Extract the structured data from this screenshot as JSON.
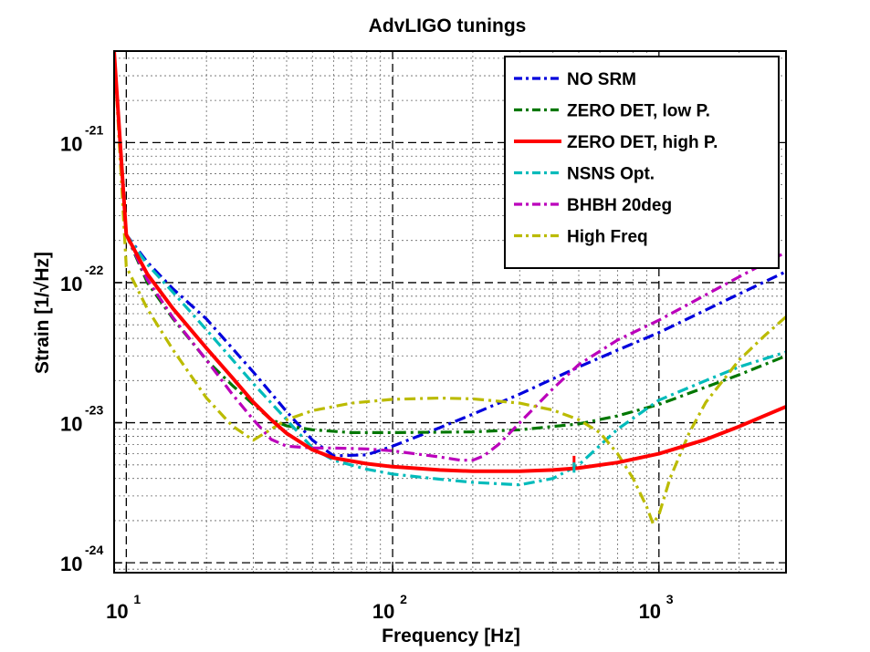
{
  "chart_data": {
    "type": "line",
    "title": "AdvLIGO tunings",
    "xlabel": "Frequency [Hz]",
    "ylabel": "Strain [1/√Hz]",
    "xscale": "log",
    "yscale": "log",
    "xlim": [
      9,
      3000
    ],
    "ylim": [
      8.5e-25,
      4.5e-21
    ],
    "grid": true,
    "legend_position": "top-right",
    "x_ticks": [
      {
        "base": "10",
        "exp": "1"
      },
      {
        "base": "10",
        "exp": "2"
      },
      {
        "base": "10",
        "exp": "3"
      }
    ],
    "y_ticks": [
      {
        "base": "10",
        "exp": "-21"
      },
      {
        "base": "10",
        "exp": "-22"
      },
      {
        "base": "10",
        "exp": "-23"
      },
      {
        "base": "10",
        "exp": "-24"
      }
    ],
    "series": [
      {
        "name": "NO SRM",
        "color": "#0000dd",
        "style": "dashdot",
        "x": [
          9,
          10,
          12,
          15,
          20,
          30,
          40,
          50,
          60,
          80,
          100,
          150,
          200,
          300,
          500,
          700,
          1000,
          2000,
          3000
        ],
        "y": [
          4.5e-21,
          2.2e-22,
          1.4e-22,
          9e-23,
          5.5e-23,
          2.3e-23,
          1.2e-23,
          7.5e-24,
          5.8e-24,
          5.9e-24,
          6.8e-24,
          9.2e-24,
          1.15e-23,
          1.6e-23,
          2.5e-23,
          3.3e-23,
          4.4e-23,
          8.3e-23,
          1.2e-22
        ]
      },
      {
        "name": "ZERO DET, low P.",
        "color": "#007700",
        "style": "dashdot",
        "x": [
          9,
          10,
          12,
          15,
          20,
          25,
          30,
          35,
          40,
          50,
          70,
          100,
          200,
          300,
          500,
          700,
          1000,
          2000,
          3000
        ],
        "y": [
          4.5e-21,
          2.2e-22,
          1e-22,
          5.5e-23,
          2.8e-23,
          1.85e-23,
          1.35e-23,
          1.05e-23,
          9.5e-24,
          8.9e-24,
          8.5e-24,
          8.5e-24,
          8.6e-24,
          8.9e-24,
          9.8e-24,
          1.12e-23,
          1.35e-23,
          2.2e-23,
          3e-23
        ]
      },
      {
        "name": "ZERO DET, high P.",
        "color": "#ff0000",
        "style": "solid",
        "x": [
          9,
          10,
          12,
          15,
          20,
          25,
          30,
          35,
          40,
          50,
          60,
          80,
          100,
          150,
          200,
          300,
          400,
          500,
          700,
          1000,
          1500,
          2000,
          3000
        ],
        "y": [
          4.5e-21,
          2.2e-22,
          1.15e-22,
          6.5e-23,
          3.4e-23,
          2.1e-23,
          1.4e-23,
          1.05e-23,
          8.4e-24,
          6.4e-24,
          5.6e-24,
          5.1e-24,
          4.85e-24,
          4.6e-24,
          4.5e-24,
          4.5e-24,
          4.6e-24,
          4.75e-24,
          5.2e-24,
          6e-24,
          7.6e-24,
          9.4e-24,
          1.3e-23
        ]
      },
      {
        "name": "NSNS Opt.",
        "color": "#00bbbb",
        "style": "dashdot",
        "x": [
          9,
          10,
          12,
          15,
          20,
          30,
          40,
          50,
          60,
          80,
          100,
          150,
          200,
          300,
          400,
          500,
          700,
          1000,
          1500,
          2000,
          3000
        ],
        "y": [
          4.5e-21,
          2.2e-22,
          1.35e-22,
          8.5e-23,
          4.6e-23,
          1.9e-23,
          1.05e-23,
          6.6e-24,
          5.4e-24,
          4.65e-24,
          4.3e-24,
          3.95e-24,
          3.75e-24,
          3.6e-24,
          4e-24,
          5e-24,
          9e-24,
          1.45e-23,
          2e-23,
          2.5e-23,
          3.2e-23
        ]
      },
      {
        "name": "BHBH 20deg",
        "color": "#bb00bb",
        "style": "dashdot",
        "x": [
          9,
          10,
          12,
          15,
          20,
          25,
          30,
          35,
          40,
          50,
          60,
          80,
          100,
          150,
          180,
          200,
          220,
          250,
          300,
          400,
          500,
          700,
          1000,
          2000,
          3000
        ],
        "y": [
          4.5e-21,
          2.2e-22,
          1.05e-22,
          5.6e-23,
          2.8e-23,
          1.6e-23,
          1.05e-23,
          7.6e-24,
          6.8e-24,
          6.6e-24,
          6.6e-24,
          6.5e-24,
          6.3e-24,
          5.7e-24,
          5.4e-24,
          5.4e-24,
          5.8e-24,
          7e-24,
          1e-23,
          1.75e-23,
          2.6e-23,
          3.9e-23,
          5.4e-23,
          1.1e-22,
          1.65e-22
        ]
      },
      {
        "name": "High Freq",
        "color": "#bbbb00",
        "style": "dashdot",
        "x": [
          9,
          10,
          12,
          15,
          20,
          25,
          30,
          35,
          40,
          50,
          70,
          100,
          150,
          200,
          300,
          400,
          500,
          600,
          700,
          800,
          900,
          950,
          1000,
          1100,
          1300,
          1500,
          2000,
          2500,
          3000
        ],
        "y": [
          4.5e-21,
          1.3e-22,
          6.5e-23,
          3.3e-23,
          1.5e-23,
          9.5e-24,
          7.5e-24,
          9e-24,
          1.05e-23,
          1.22e-23,
          1.38e-23,
          1.47e-23,
          1.5e-23,
          1.48e-23,
          1.38e-23,
          1.23e-23,
          1.05e-23,
          8.5e-24,
          6e-24,
          4e-24,
          2.5e-24,
          1.9e-24,
          2.2e-24,
          4e-24,
          8.5e-24,
          1.4e-23,
          2.8e-23,
          4.2e-23,
          5.7e-23
        ]
      }
    ],
    "markers": [
      {
        "series": "ZERO DET, high P.",
        "color": "#ff0000",
        "x": 480,
        "y_low": 4.6e-24,
        "y_high": 5.8e-24
      },
      {
        "series": "NSNS Opt.",
        "color": "#00bbbb",
        "x": 480,
        "y_low": 4.4e-24,
        "y_high": 5.2e-24
      }
    ]
  }
}
